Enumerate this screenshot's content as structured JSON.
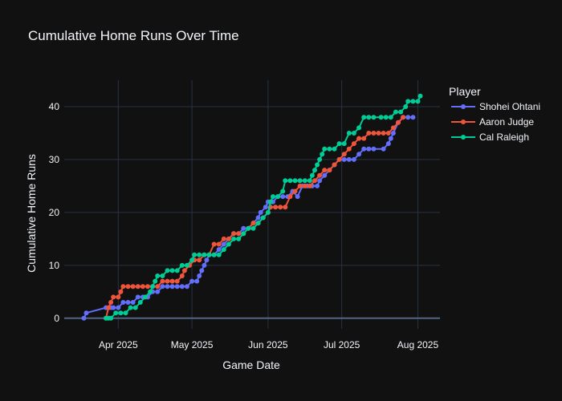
{
  "chart_data": {
    "type": "line",
    "title": "Cumulative Home Runs Over Time",
    "xlabel": "Game Date",
    "ylabel": "Cumulative Home Runs",
    "xlim": [
      "2025-03-10",
      "2025-08-10"
    ],
    "ylim": [
      -2,
      45
    ],
    "xticks": [
      {
        "date": "2025-04-01",
        "label": "Apr 2025"
      },
      {
        "date": "2025-05-01",
        "label": "May 2025"
      },
      {
        "date": "2025-06-01",
        "label": "Jun 2025"
      },
      {
        "date": "2025-07-01",
        "label": "Jul 2025"
      },
      {
        "date": "2025-08-01",
        "label": "Aug 2025"
      }
    ],
    "yticks": [
      0,
      10,
      20,
      30,
      40
    ],
    "grid": true,
    "legend": {
      "title": "Player",
      "position": "right"
    },
    "series": [
      {
        "name": "Shohei Ohtani",
        "color": "#636efa",
        "points": [
          [
            "2025-03-18",
            0
          ],
          [
            "2025-03-19",
            1
          ],
          [
            "2025-03-27",
            2
          ],
          [
            "2025-03-29",
            2
          ],
          [
            "2025-03-30",
            2
          ],
          [
            "2025-04-01",
            2
          ],
          [
            "2025-04-03",
            3
          ],
          [
            "2025-04-05",
            3
          ],
          [
            "2025-04-07",
            3
          ],
          [
            "2025-04-09",
            4
          ],
          [
            "2025-04-11",
            4
          ],
          [
            "2025-04-13",
            4
          ],
          [
            "2025-04-15",
            5
          ],
          [
            "2025-04-17",
            5
          ],
          [
            "2025-04-19",
            6
          ],
          [
            "2025-04-21",
            6
          ],
          [
            "2025-04-23",
            6
          ],
          [
            "2025-04-25",
            6
          ],
          [
            "2025-04-27",
            6
          ],
          [
            "2025-04-29",
            6
          ],
          [
            "2025-05-01",
            7
          ],
          [
            "2025-05-03",
            7
          ],
          [
            "2025-05-04",
            8
          ],
          [
            "2025-05-05",
            9
          ],
          [
            "2025-05-06",
            10
          ],
          [
            "2025-05-07",
            11
          ],
          [
            "2025-05-08",
            12
          ],
          [
            "2025-05-10",
            12
          ],
          [
            "2025-05-12",
            13
          ],
          [
            "2025-05-14",
            14
          ],
          [
            "2025-05-16",
            15
          ],
          [
            "2025-05-18",
            16
          ],
          [
            "2025-05-20",
            16
          ],
          [
            "2025-05-22",
            17
          ],
          [
            "2025-05-24",
            17
          ],
          [
            "2025-05-26",
            18
          ],
          [
            "2025-05-28",
            19
          ],
          [
            "2025-05-29",
            20
          ],
          [
            "2025-05-31",
            21
          ],
          [
            "2025-06-01",
            22
          ],
          [
            "2025-06-03",
            22
          ],
          [
            "2025-06-05",
            23
          ],
          [
            "2025-06-07",
            23
          ],
          [
            "2025-06-09",
            23
          ],
          [
            "2025-06-11",
            24
          ],
          [
            "2025-06-13",
            23
          ],
          [
            "2025-06-15",
            25
          ],
          [
            "2025-06-17",
            25
          ],
          [
            "2025-06-19",
            25
          ],
          [
            "2025-06-21",
            25
          ],
          [
            "2025-06-22",
            26
          ],
          [
            "2025-06-24",
            27
          ],
          [
            "2025-06-26",
            28
          ],
          [
            "2025-06-28",
            29
          ],
          [
            "2025-06-30",
            30
          ],
          [
            "2025-07-02",
            30
          ],
          [
            "2025-07-04",
            30
          ],
          [
            "2025-07-06",
            30
          ],
          [
            "2025-07-08",
            31
          ],
          [
            "2025-07-10",
            32
          ],
          [
            "2025-07-12",
            32
          ],
          [
            "2025-07-14",
            32
          ],
          [
            "2025-07-18",
            32
          ],
          [
            "2025-07-20",
            33
          ],
          [
            "2025-07-21",
            34
          ],
          [
            "2025-07-22",
            35
          ],
          [
            "2025-07-24",
            37
          ],
          [
            "2025-07-26",
            38
          ],
          [
            "2025-07-28",
            38
          ],
          [
            "2025-07-30",
            38
          ]
        ]
      },
      {
        "name": "Aaron Judge",
        "color": "#ef553b",
        "points": [
          [
            "2025-03-27",
            0
          ],
          [
            "2025-03-28",
            2
          ],
          [
            "2025-03-29",
            3
          ],
          [
            "2025-03-30",
            4
          ],
          [
            "2025-04-01",
            4
          ],
          [
            "2025-04-02",
            5
          ],
          [
            "2025-04-03",
            6
          ],
          [
            "2025-04-05",
            6
          ],
          [
            "2025-04-07",
            6
          ],
          [
            "2025-04-09",
            6
          ],
          [
            "2025-04-11",
            6
          ],
          [
            "2025-04-13",
            6
          ],
          [
            "2025-04-15",
            6
          ],
          [
            "2025-04-17",
            6
          ],
          [
            "2025-04-19",
            7
          ],
          [
            "2025-04-21",
            7
          ],
          [
            "2025-04-23",
            7
          ],
          [
            "2025-04-25",
            7
          ],
          [
            "2025-04-27",
            8
          ],
          [
            "2025-04-28",
            9
          ],
          [
            "2025-04-30",
            10
          ],
          [
            "2025-05-02",
            11
          ],
          [
            "2025-05-04",
            11
          ],
          [
            "2025-05-06",
            12
          ],
          [
            "2025-05-08",
            12
          ],
          [
            "2025-05-10",
            14
          ],
          [
            "2025-05-12",
            14
          ],
          [
            "2025-05-14",
            15
          ],
          [
            "2025-05-16",
            15
          ],
          [
            "2025-05-18",
            16
          ],
          [
            "2025-05-20",
            16
          ],
          [
            "2025-05-22",
            16
          ],
          [
            "2025-05-24",
            17
          ],
          [
            "2025-05-26",
            18
          ],
          [
            "2025-05-28",
            18
          ],
          [
            "2025-05-30",
            19
          ],
          [
            "2025-06-01",
            20
          ],
          [
            "2025-06-02",
            21
          ],
          [
            "2025-06-04",
            21
          ],
          [
            "2025-06-06",
            21
          ],
          [
            "2025-06-08",
            21
          ],
          [
            "2025-06-10",
            23
          ],
          [
            "2025-06-12",
            24
          ],
          [
            "2025-06-14",
            25
          ],
          [
            "2025-06-16",
            25
          ],
          [
            "2025-06-18",
            25
          ],
          [
            "2025-06-20",
            26
          ],
          [
            "2025-06-22",
            27
          ],
          [
            "2025-06-24",
            28
          ],
          [
            "2025-06-26",
            28
          ],
          [
            "2025-06-28",
            29
          ],
          [
            "2025-06-30",
            30
          ],
          [
            "2025-07-02",
            31
          ],
          [
            "2025-07-04",
            32
          ],
          [
            "2025-07-06",
            33
          ],
          [
            "2025-07-08",
            34
          ],
          [
            "2025-07-10",
            34
          ],
          [
            "2025-07-12",
            35
          ],
          [
            "2025-07-14",
            35
          ],
          [
            "2025-07-16",
            35
          ],
          [
            "2025-07-18",
            35
          ],
          [
            "2025-07-20",
            35
          ],
          [
            "2025-07-22",
            36
          ],
          [
            "2025-07-24",
            37
          ],
          [
            "2025-07-26",
            38
          ]
        ]
      },
      {
        "name": "Cal Raleigh",
        "color": "#00cc96",
        "points": [
          [
            "2025-03-27",
            0
          ],
          [
            "2025-03-28",
            0
          ],
          [
            "2025-03-29",
            0
          ],
          [
            "2025-03-31",
            1
          ],
          [
            "2025-04-02",
            1
          ],
          [
            "2025-04-04",
            1
          ],
          [
            "2025-04-06",
            2
          ],
          [
            "2025-04-08",
            2
          ],
          [
            "2025-04-10",
            3
          ],
          [
            "2025-04-12",
            4
          ],
          [
            "2025-04-14",
            5
          ],
          [
            "2025-04-15",
            6
          ],
          [
            "2025-04-16",
            7
          ],
          [
            "2025-04-17",
            8
          ],
          [
            "2025-04-19",
            8
          ],
          [
            "2025-04-21",
            9
          ],
          [
            "2025-04-23",
            9
          ],
          [
            "2025-04-25",
            9
          ],
          [
            "2025-04-27",
            10
          ],
          [
            "2025-04-29",
            10
          ],
          [
            "2025-05-01",
            11
          ],
          [
            "2025-05-02",
            12
          ],
          [
            "2025-05-04",
            12
          ],
          [
            "2025-05-06",
            12
          ],
          [
            "2025-05-08",
            12
          ],
          [
            "2025-05-10",
            12
          ],
          [
            "2025-05-12",
            12
          ],
          [
            "2025-05-14",
            13
          ],
          [
            "2025-05-16",
            14
          ],
          [
            "2025-05-18",
            15
          ],
          [
            "2025-05-20",
            15
          ],
          [
            "2025-05-22",
            16
          ],
          [
            "2025-05-24",
            17
          ],
          [
            "2025-05-26",
            17
          ],
          [
            "2025-05-28",
            18
          ],
          [
            "2025-05-30",
            19
          ],
          [
            "2025-06-01",
            20
          ],
          [
            "2025-06-02",
            22
          ],
          [
            "2025-06-03",
            23
          ],
          [
            "2025-06-05",
            23
          ],
          [
            "2025-06-07",
            24
          ],
          [
            "2025-06-08",
            26
          ],
          [
            "2025-06-10",
            26
          ],
          [
            "2025-06-12",
            26
          ],
          [
            "2025-06-14",
            26
          ],
          [
            "2025-06-16",
            26
          ],
          [
            "2025-06-18",
            26
          ],
          [
            "2025-06-19",
            27
          ],
          [
            "2025-06-20",
            28
          ],
          [
            "2025-06-21",
            29
          ],
          [
            "2025-06-22",
            30
          ],
          [
            "2025-06-23",
            31
          ],
          [
            "2025-06-24",
            32
          ],
          [
            "2025-06-26",
            32
          ],
          [
            "2025-06-28",
            32
          ],
          [
            "2025-06-30",
            33
          ],
          [
            "2025-07-02",
            33
          ],
          [
            "2025-07-04",
            35
          ],
          [
            "2025-07-06",
            35
          ],
          [
            "2025-07-08",
            36
          ],
          [
            "2025-07-10",
            38
          ],
          [
            "2025-07-12",
            38
          ],
          [
            "2025-07-14",
            38
          ],
          [
            "2025-07-17",
            38
          ],
          [
            "2025-07-19",
            38
          ],
          [
            "2025-07-21",
            38
          ],
          [
            "2025-07-23",
            39
          ],
          [
            "2025-07-25",
            39
          ],
          [
            "2025-07-27",
            40
          ],
          [
            "2025-07-28",
            41
          ],
          [
            "2025-07-30",
            41
          ],
          [
            "2025-08-01",
            41
          ],
          [
            "2025-08-02",
            42
          ]
        ]
      }
    ]
  }
}
